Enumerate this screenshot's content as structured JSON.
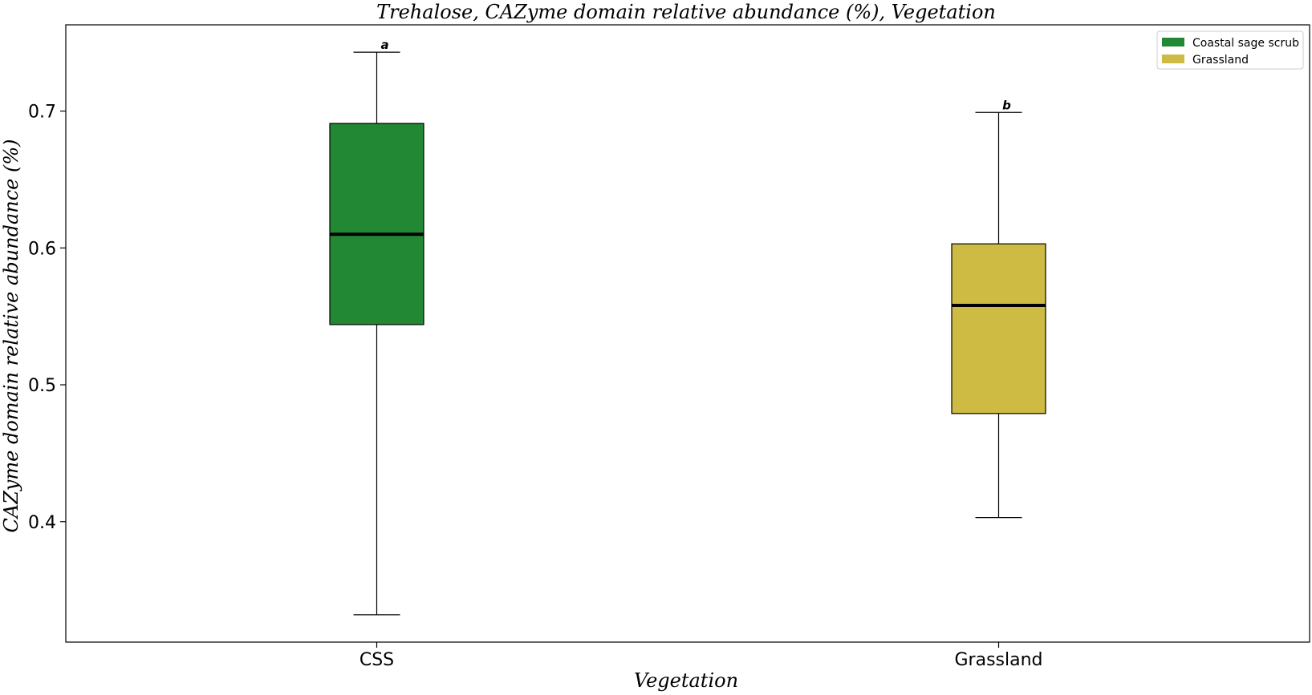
{
  "chart_data": {
    "type": "box",
    "title": "Trehalose, CAZyme domain relative abundance (%), Vegetation",
    "xlabel": "Vegetation",
    "ylabel": "CAZyme domain relative abundance (%)",
    "ylim": [
      0.312,
      0.763
    ],
    "yticks": [
      0.4,
      0.5,
      0.6,
      0.7
    ],
    "ytick_labels": [
      "0.4",
      "0.5",
      "0.6",
      "0.7"
    ],
    "categories": [
      "CSS",
      "Grassland"
    ],
    "boxes": [
      {
        "category": "CSS",
        "series": "Coastal sage scrub",
        "whisker_low": 0.332,
        "q1": 0.544,
        "median": 0.61,
        "q3": 0.691,
        "whisker_high": 0.743,
        "significance": "a",
        "color": "#238833"
      },
      {
        "category": "Grassland",
        "series": "Grassland",
        "whisker_low": 0.403,
        "q1": 0.479,
        "median": 0.558,
        "q3": 0.603,
        "whisker_high": 0.699,
        "significance": "b",
        "color": "#CDBB44"
      }
    ],
    "legend": {
      "position": "top-right",
      "entries": [
        {
          "label": "Coastal sage scrub",
          "color": "#238833"
        },
        {
          "label": "Grassland",
          "color": "#CDBB44"
        }
      ]
    },
    "grid": false
  }
}
